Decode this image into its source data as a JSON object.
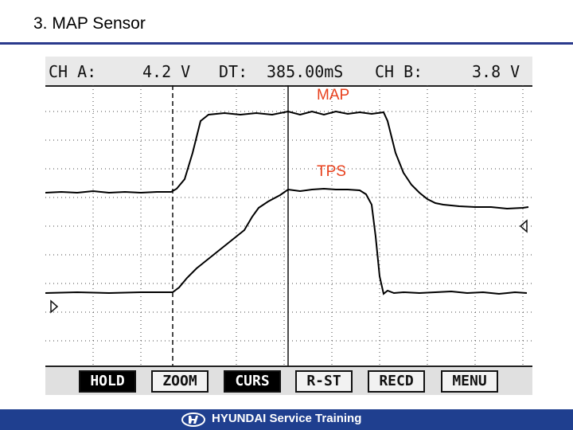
{
  "slide": {
    "title": "3. MAP Sensor"
  },
  "scope": {
    "ch_a": {
      "label": "CH A:",
      "value": "4.2 V"
    },
    "dt": {
      "label": "DT:",
      "value": "385.00mS"
    },
    "ch_b": {
      "label": "CH B:",
      "value": "3.8 V"
    },
    "traces": {
      "map_label": "MAP",
      "tps_label": "TPS",
      "map_color": "#000000",
      "tps_color": "#000000",
      "label_color": "#e8401c"
    },
    "softkeys": [
      {
        "label": "HOLD",
        "active": true
      },
      {
        "label": "ZOOM",
        "active": false
      },
      {
        "label": "CURS",
        "active": true
      },
      {
        "label": "R-ST",
        "active": false
      },
      {
        "label": "RECD",
        "active": false
      },
      {
        "label": "MENU",
        "active": false
      }
    ]
  },
  "footer": {
    "text": "HYUNDAI Service Training",
    "background": "#1f3f8f"
  }
}
